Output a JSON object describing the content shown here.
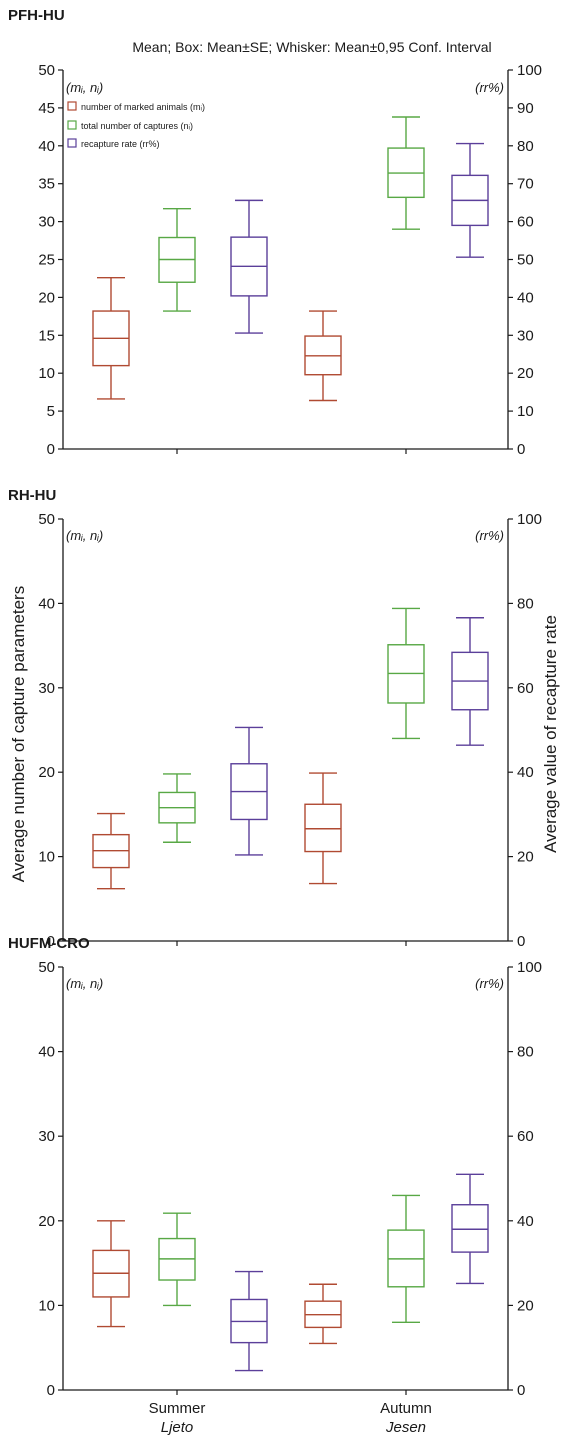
{
  "subtitle": "Mean; Box: Mean±SE; Whisker: Mean±0,95 Conf. Interval",
  "colors": {
    "marked": "#b04a32",
    "captures": "#58a845",
    "recapture": "#5b3f9a",
    "axis": "#1a1a1a"
  },
  "left_axis_label": "Average number of capture parameters",
  "right_axis_label": "Average value of recapture rate",
  "left_corner_label": "(mᵢ, nᵢ)",
  "right_corner_label": "(rr%)",
  "x_categories": [
    {
      "label": "Summer",
      "sublabel": "Ljeto"
    },
    {
      "label": "Autumn",
      "sublabel": "Jesen"
    }
  ],
  "chart_data": [
    {
      "type": "box",
      "title": "PFH-HU",
      "left_ylim": [
        0,
        50
      ],
      "left_ticks": [
        0,
        5,
        10,
        15,
        20,
        25,
        30,
        35,
        40,
        45,
        50
      ],
      "right_ylim": [
        0,
        100
      ],
      "right_ticks": [
        0,
        10,
        20,
        30,
        40,
        50,
        60,
        70,
        80,
        90,
        100
      ],
      "legend": [
        {
          "name": "number of marked animals (mᵢ)",
          "color": "#b04a32"
        },
        {
          "name": "total number of captures (nᵢ)",
          "color": "#58a845"
        },
        {
          "name": "recapture rate (rr%)",
          "color": "#5b3f9a"
        }
      ],
      "boxes": [
        {
          "season": "Summer",
          "series": "marked",
          "mean": 14.6,
          "se_low": 11.0,
          "se_high": 18.2,
          "ci_low": 6.6,
          "ci_high": 22.6
        },
        {
          "season": "Summer",
          "series": "captures",
          "mean": 25.0,
          "se_low": 22.0,
          "se_high": 27.9,
          "ci_low": 18.2,
          "ci_high": 31.7
        },
        {
          "season": "Summer",
          "series": "recapture",
          "mean": 48.2,
          "se_low": 40.4,
          "se_high": 55.9,
          "ci_low": 30.6,
          "ci_high": 65.6
        },
        {
          "season": "Autumn",
          "series": "marked",
          "mean": 12.3,
          "se_low": 9.8,
          "se_high": 14.9,
          "ci_low": 6.4,
          "ci_high": 18.2
        },
        {
          "season": "Autumn",
          "series": "captures",
          "mean": 36.4,
          "se_low": 33.2,
          "se_high": 39.7,
          "ci_low": 29.0,
          "ci_high": 43.8
        },
        {
          "season": "Autumn",
          "series": "recapture",
          "mean": 65.6,
          "se_low": 59.0,
          "se_high": 72.2,
          "ci_low": 50.6,
          "ci_high": 80.6
        }
      ]
    },
    {
      "type": "box",
      "title": "RH-HU",
      "left_ylim": [
        0,
        50
      ],
      "left_ticks": [
        0,
        10,
        20,
        30,
        40,
        50
      ],
      "right_ylim": [
        0,
        100
      ],
      "right_ticks": [
        0,
        20,
        40,
        60,
        80,
        100
      ],
      "legend": [],
      "boxes": [
        {
          "season": "Summer",
          "series": "marked",
          "mean": 10.7,
          "se_low": 8.7,
          "se_high": 12.6,
          "ci_low": 6.2,
          "ci_high": 15.1
        },
        {
          "season": "Summer",
          "series": "captures",
          "mean": 15.8,
          "se_low": 14.0,
          "se_high": 17.6,
          "ci_low": 11.7,
          "ci_high": 19.8
        },
        {
          "season": "Summer",
          "series": "recapture",
          "mean": 35.4,
          "se_low": 28.8,
          "se_high": 42.0,
          "ci_low": 20.4,
          "ci_high": 50.6
        },
        {
          "season": "Autumn",
          "series": "marked",
          "mean": 13.3,
          "se_low": 10.6,
          "se_high": 16.2,
          "ci_low": 6.8,
          "ci_high": 19.9
        },
        {
          "season": "Autumn",
          "series": "captures",
          "mean": 31.7,
          "se_low": 28.2,
          "se_high": 35.1,
          "ci_low": 24.0,
          "ci_high": 39.4
        },
        {
          "season": "Autumn",
          "series": "recapture",
          "mean": 61.6,
          "se_low": 54.8,
          "se_high": 68.4,
          "ci_low": 46.4,
          "ci_high": 76.6
        }
      ]
    },
    {
      "type": "box",
      "title": "HUFM-CRO",
      "left_ylim": [
        0,
        50
      ],
      "left_ticks": [
        0,
        10,
        20,
        30,
        40,
        50
      ],
      "right_ylim": [
        0,
        100
      ],
      "right_ticks": [
        0,
        20,
        40,
        60,
        80,
        100
      ],
      "legend": [],
      "boxes": [
        {
          "season": "Summer",
          "series": "marked",
          "mean": 13.8,
          "se_low": 11.0,
          "se_high": 16.5,
          "ci_low": 7.5,
          "ci_high": 20.0
        },
        {
          "season": "Summer",
          "series": "captures",
          "mean": 15.5,
          "se_low": 13.0,
          "se_high": 17.9,
          "ci_low": 10.0,
          "ci_high": 20.9
        },
        {
          "season": "Summer",
          "series": "recapture",
          "mean": 16.2,
          "se_low": 11.2,
          "se_high": 21.4,
          "ci_low": 4.6,
          "ci_high": 28.0
        },
        {
          "season": "Autumn",
          "series": "marked",
          "mean": 8.9,
          "se_low": 7.4,
          "se_high": 10.5,
          "ci_low": 5.5,
          "ci_high": 12.5
        },
        {
          "season": "Autumn",
          "series": "captures",
          "mean": 15.5,
          "se_low": 12.2,
          "se_high": 18.9,
          "ci_low": 8.0,
          "ci_high": 23.0
        },
        {
          "season": "Autumn",
          "series": "recapture",
          "mean": 38.0,
          "se_low": 32.6,
          "se_high": 43.8,
          "ci_low": 25.2,
          "ci_high": 51.0
        }
      ]
    }
  ]
}
